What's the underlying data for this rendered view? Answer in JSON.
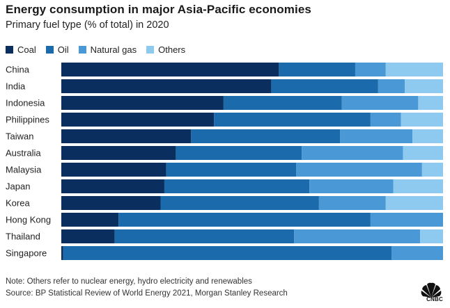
{
  "title": "Energy consumption in major Asia-Pacific economies",
  "subtitle": "Primary fuel type (% of total) in 2020",
  "legend": [
    {
      "label": "Coal",
      "color": "#0a2f5f"
    },
    {
      "label": "Oil",
      "color": "#1b6aab"
    },
    {
      "label": "Natural gas",
      "color": "#4a98d6"
    },
    {
      "label": "Others",
      "color": "#8ecaf0"
    }
  ],
  "chart_data": {
    "type": "bar",
    "orientation": "horizontal",
    "stacked": true,
    "title": "Energy consumption in major Asia-Pacific economies",
    "subtitle": "Primary fuel type (% of total) in 2020",
    "xlabel": "",
    "ylabel": "",
    "xlim": [
      0,
      100
    ],
    "categories": [
      "China",
      "India",
      "Indonesia",
      "Philippines",
      "Taiwan",
      "Australia",
      "Malaysia",
      "Japan",
      "Korea",
      "Hong Kong",
      "Thailand",
      "Singapore"
    ],
    "series": [
      {
        "name": "Coal",
        "color": "#0a2f5f",
        "values": [
          57,
          55,
          42.5,
          40,
          34,
          30,
          27.5,
          27,
          26,
          15,
          14,
          0.5
        ]
      },
      {
        "name": "Oil",
        "color": "#1b6aab",
        "values": [
          20,
          28,
          31,
          41,
          39,
          33,
          34,
          38,
          41.5,
          66,
          47,
          86
        ]
      },
      {
        "name": "Natural gas",
        "color": "#4a98d6",
        "values": [
          8,
          7,
          20,
          8,
          19,
          26.5,
          33,
          22,
          17.5,
          19,
          33,
          13.5
        ]
      },
      {
        "name": "Others",
        "color": "#8ecaf0",
        "values": [
          15,
          10,
          6.5,
          11,
          8,
          10.5,
          5.5,
          13,
          15,
          0,
          6,
          0
        ]
      }
    ]
  },
  "footer": {
    "note": "Note: Others refer to nuclear energy, hydro electricity and renewables",
    "source": "Source: BP Statistical Review of World Energy 2021, Morgan Stanley Research"
  },
  "brand": {
    "logo_text": "CNBC"
  }
}
